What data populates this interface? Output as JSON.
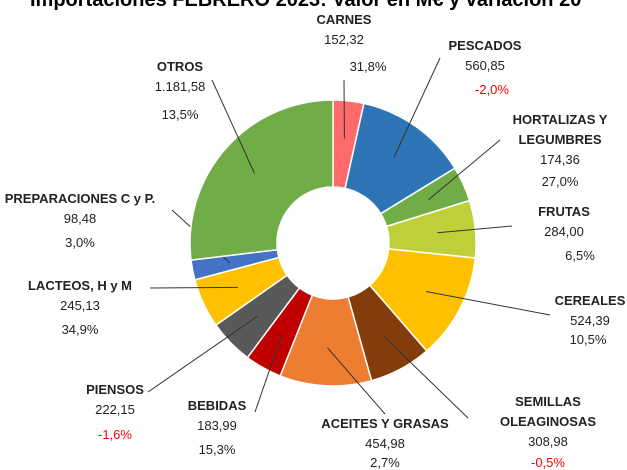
{
  "chart_data": {
    "type": "donut",
    "title": "Importaciones FEBRERO 2023: Valor en M€ y variación 20",
    "categories": [
      "CARNES",
      "PESCADOS",
      "HORTALIZAS Y LEGUMBRES",
      "FRUTAS",
      "CEREALES",
      "SEMILLAS OLEAGINOSAS",
      "ACEITES Y GRASAS",
      "BEBIDAS",
      "PIENSOS",
      "LACTEOS, H y M",
      "PREPARACIONES C y P.",
      "OTROS"
    ],
    "values": [
      152.32,
      560.85,
      174.36,
      284.0,
      524.39,
      308.98,
      454.98,
      183.99,
      222.15,
      245.13,
      98.48,
      1181.58
    ],
    "value_labels": [
      "152,32",
      "560,85",
      "174,36",
      "284,00",
      "524,39",
      "308,98",
      "454,98",
      "183,99",
      "222,15",
      "245,13",
      "98,48",
      "1.181,58"
    ],
    "variations": [
      31.8,
      -2.0,
      27.0,
      6.5,
      10.5,
      -0.5,
      2.7,
      15.3,
      -1.6,
      34.9,
      3.0,
      13.5
    ],
    "variation_labels": [
      "31,8%",
      "-2,0%",
      "27,0%",
      "6,5%",
      "10,5%",
      "-0,5%",
      "2,7%",
      "15,3%",
      "-1,6%",
      "34,9%",
      "3,0%",
      "13,5%"
    ],
    "colors": [
      "#ff6b6b",
      "#2e75b6",
      "#70ad47",
      "#bfcf3a",
      "#ffc000",
      "#843c0c",
      "#ed7d31",
      "#c00000",
      "#595959",
      "#ffc000",
      "#4472c4",
      "#70ad47"
    ],
    "negative_color": "#ff0000"
  }
}
